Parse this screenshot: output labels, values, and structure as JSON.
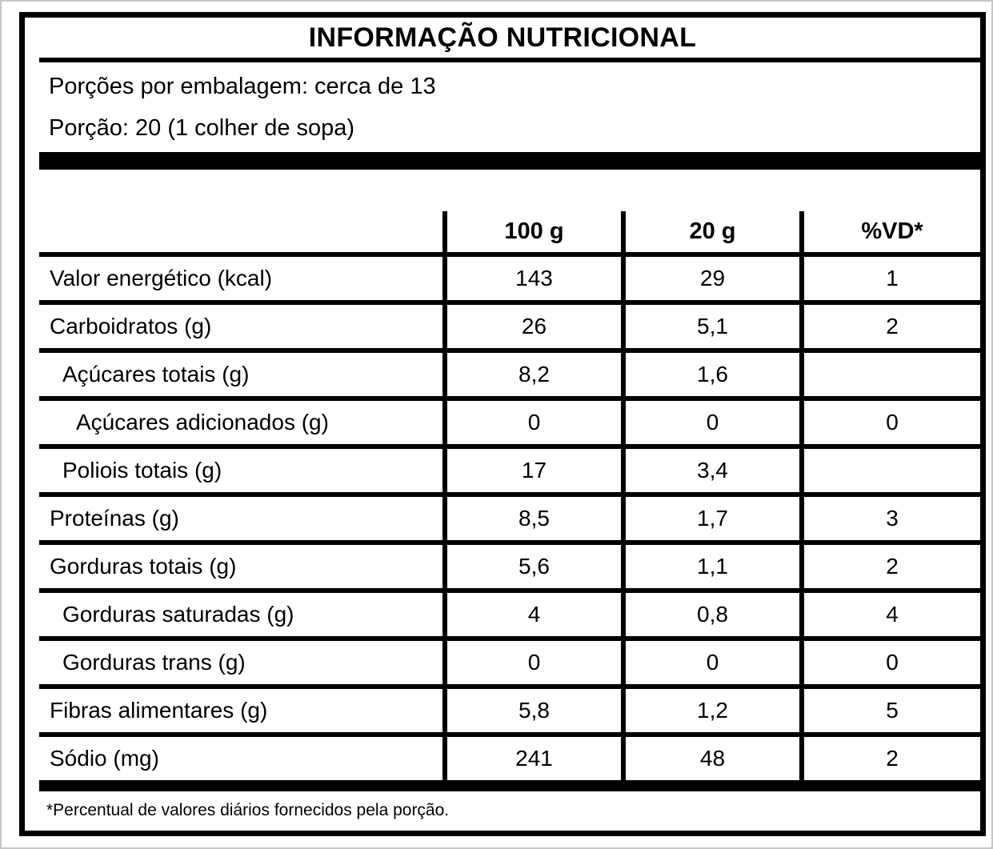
{
  "label": {
    "title": "INFORMAÇÃO NUTRICIONAL",
    "servings_line1": "Porções por embalagem: cerca de 13",
    "servings_line2": "Porção: 20 (1 colher de sopa)",
    "footnote": "*Percentual de valores diários fornecidos pela porção.",
    "colors": {
      "rule": "#000000",
      "background": "#ffffff",
      "text": "#000000"
    }
  },
  "table": {
    "columns": [
      "",
      "100 g",
      "20 g",
      "%VD*"
    ],
    "rows": [
      {
        "label": "Valor energético (kcal)",
        "indent": 0,
        "per100g": "143",
        "per20g": "29",
        "vd": "1"
      },
      {
        "label": "Carboidratos (g)",
        "indent": 0,
        "per100g": "26",
        "per20g": "5,1",
        "vd": "2"
      },
      {
        "label": "Açúcares totais (g)",
        "indent": 1,
        "per100g": "8,2",
        "per20g": "1,6",
        "vd": ""
      },
      {
        "label": "Açúcares adicionados (g)",
        "indent": 2,
        "per100g": "0",
        "per20g": "0",
        "vd": "0"
      },
      {
        "label": "Poliois totais (g)",
        "indent": 1,
        "per100g": "17",
        "per20g": "3,4",
        "vd": ""
      },
      {
        "label": "Proteínas (g)",
        "indent": 0,
        "per100g": "8,5",
        "per20g": "1,7",
        "vd": "3"
      },
      {
        "label": "Gorduras totais (g)",
        "indent": 0,
        "per100g": "5,6",
        "per20g": "1,1",
        "vd": "2"
      },
      {
        "label": "Gorduras saturadas (g)",
        "indent": 1,
        "per100g": "4",
        "per20g": "0,8",
        "vd": "4"
      },
      {
        "label": "Gorduras trans (g)",
        "indent": 1,
        "per100g": "0",
        "per20g": "0",
        "vd": "0"
      },
      {
        "label": "Fibras alimentares (g)",
        "indent": 0,
        "per100g": "5,8",
        "per20g": "1,2",
        "vd": "5"
      },
      {
        "label": "Sódio (mg)",
        "indent": 0,
        "per100g": "241",
        "per20g": "48",
        "vd": "2"
      }
    ]
  }
}
